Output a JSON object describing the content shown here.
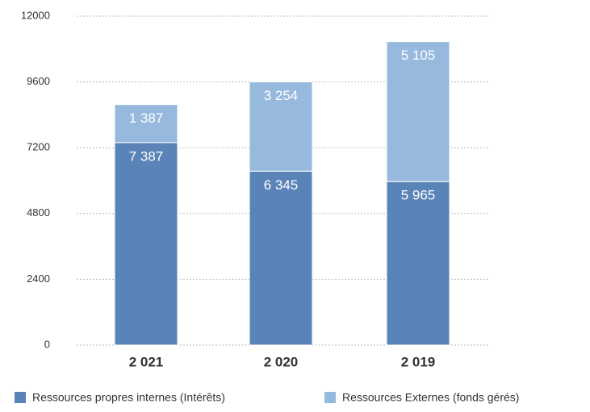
{
  "chart_data": {
    "type": "stacked-bar",
    "categories": [
      "2 021",
      "2 020",
      "2 019"
    ],
    "series": [
      {
        "name": "Ressources propres internes  (Intérêts)",
        "color": "#5a83b7",
        "values": [
          7387,
          6345,
          5965
        ],
        "value_labels": [
          "7 387",
          "6 345",
          "5 965"
        ]
      },
      {
        "name": "Ressources Externes (fonds gérés)",
        "color": "#96b9dd",
        "values": [
          1387,
          3254,
          5105
        ],
        "value_labels": [
          "1 387",
          "3 254",
          "5 105"
        ]
      }
    ],
    "ylim": [
      0,
      12000
    ],
    "yticks": [
      0,
      2400,
      4800,
      7200,
      9600,
      12000
    ],
    "grid": true
  }
}
